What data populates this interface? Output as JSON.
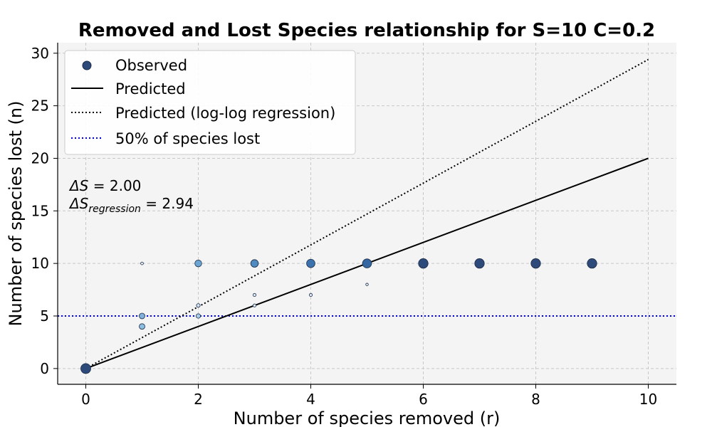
{
  "chart_data": {
    "type": "scatter",
    "title": "Removed and Lost Species relationship for S=10 C=0.2",
    "xlabel": "Number of species removed (r)",
    "ylabel": "Number of species lost (n)",
    "xlim": [
      -0.5,
      10.5
    ],
    "ylim": [
      -1.5,
      31
    ],
    "xticks": [
      0,
      2,
      4,
      6,
      8,
      10
    ],
    "yticks": [
      0,
      5,
      10,
      15,
      20,
      25,
      30
    ],
    "grid": true,
    "legend_position": "top-left",
    "legend": [
      {
        "label": "Observed",
        "style": "marker",
        "color": "#2e4a7a"
      },
      {
        "label": "Predicted",
        "style": "solid",
        "color": "#000000"
      },
      {
        "label": "Predicted (log-log regression)",
        "style": "dotted",
        "color": "#000000"
      },
      {
        "label": "50% of species lost",
        "style": "dotted",
        "color": "#0000dd"
      }
    ],
    "annotations": {
      "delta_s_symbol": "ΔS",
      "delta_s_value": " = 2.00",
      "delta_s_reg_symbol": "ΔS",
      "delta_s_reg_subscript": "regression",
      "delta_s_reg_value": " = 2.94"
    },
    "observed": [
      {
        "x": 0,
        "y": 0,
        "weight": 1.0,
        "color": "#2e4a7a"
      },
      {
        "x": 1,
        "y": 10,
        "weight": 0.08,
        "color": "#e3eef8"
      },
      {
        "x": 1,
        "y": 5,
        "weight": 0.45,
        "color": "#7fb1dc"
      },
      {
        "x": 1,
        "y": 4,
        "weight": 0.45,
        "color": "#8dbde1"
      },
      {
        "x": 2,
        "y": 10,
        "weight": 0.6,
        "color": "#6aa5d3"
      },
      {
        "x": 2,
        "y": 6,
        "weight": 0.2,
        "color": "#cfe1f2"
      },
      {
        "x": 2,
        "y": 5,
        "weight": 0.3,
        "color": "#a6cce8"
      },
      {
        "x": 3,
        "y": 10,
        "weight": 0.7,
        "color": "#4f8bc0"
      },
      {
        "x": 3,
        "y": 7,
        "weight": 0.12,
        "color": "#dbe8f5"
      },
      {
        "x": 3,
        "y": 6,
        "weight": 0.12,
        "color": "#dbe8f5"
      },
      {
        "x": 4,
        "y": 10,
        "weight": 0.8,
        "color": "#3c72ae"
      },
      {
        "x": 4,
        "y": 7,
        "weight": 0.12,
        "color": "#dbe8f5"
      },
      {
        "x": 5,
        "y": 10,
        "weight": 0.88,
        "color": "#3466a1"
      },
      {
        "x": 5,
        "y": 8,
        "weight": 0.05,
        "color": "#e8f0f8"
      },
      {
        "x": 6,
        "y": 10,
        "weight": 0.95,
        "color": "#2e4a7a"
      },
      {
        "x": 7,
        "y": 10,
        "weight": 0.95,
        "color": "#2e4a7a"
      },
      {
        "x": 8,
        "y": 10,
        "weight": 0.95,
        "color": "#2e4a7a"
      },
      {
        "x": 9,
        "y": 10,
        "weight": 0.95,
        "color": "#2e4a7a"
      }
    ],
    "predicted": {
      "x": [
        0,
        10
      ],
      "y": [
        0,
        20
      ]
    },
    "predicted_regression": {
      "x": [
        0,
        10
      ],
      "y": [
        0,
        29.4
      ]
    },
    "fifty_percent_line": {
      "y": 5
    }
  }
}
